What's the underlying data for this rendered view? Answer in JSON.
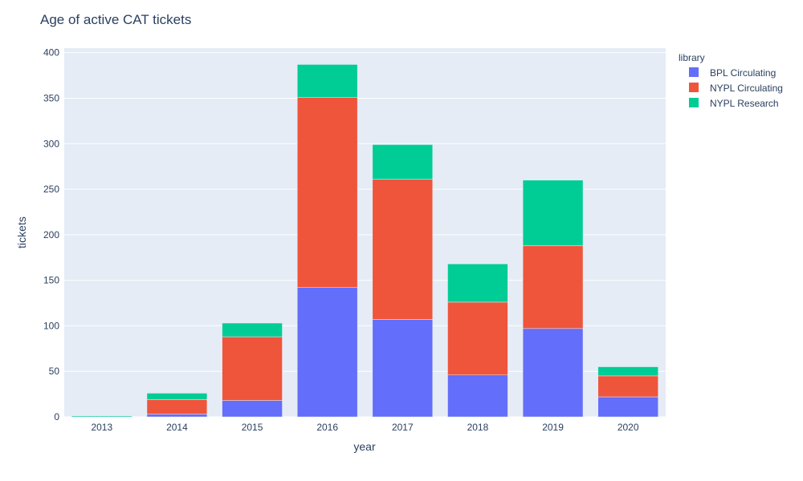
{
  "chart_data": {
    "type": "bar",
    "barmode": "stack",
    "title": "Age of active CAT tickets",
    "xlabel": "year",
    "ylabel": "tickets",
    "categories": [
      "2013",
      "2014",
      "2015",
      "2016",
      "2017",
      "2018",
      "2019",
      "2020"
    ],
    "ylim": [
      0,
      405
    ],
    "yticks": [
      0,
      50,
      100,
      150,
      200,
      250,
      300,
      350,
      400
    ],
    "grid": true,
    "legend": {
      "title": "library",
      "placement": "top-right"
    },
    "series": [
      {
        "name": "BPL Circulating",
        "color": "#636efa",
        "values": [
          0,
          3,
          18,
          142,
          107,
          46,
          97,
          22
        ]
      },
      {
        "name": "NYPL Circulating",
        "color": "#ef553b",
        "values": [
          0,
          16,
          70,
          209,
          154,
          80,
          91,
          23
        ]
      },
      {
        "name": "NYPL Research",
        "color": "#00cc96",
        "values": [
          1,
          7,
          15,
          36,
          38,
          42,
          72,
          10
        ]
      }
    ]
  }
}
